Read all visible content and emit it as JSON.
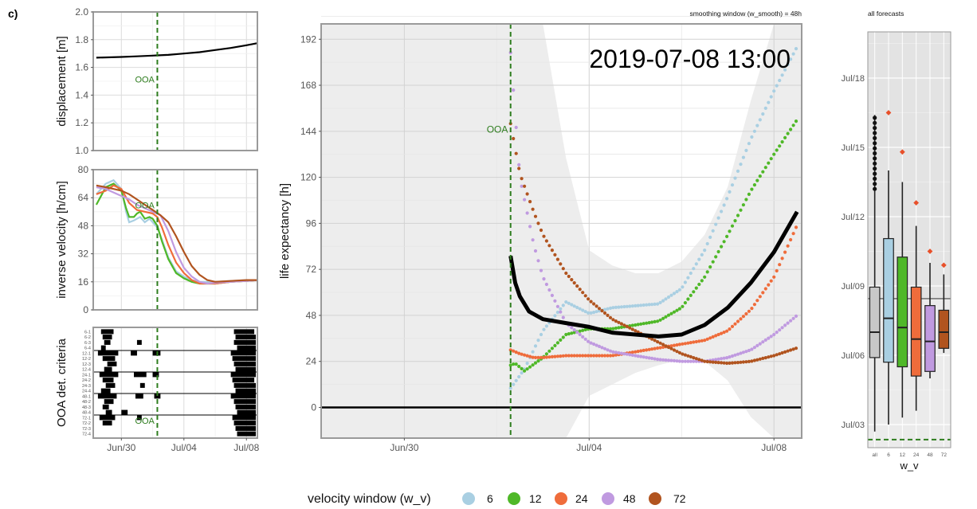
{
  "panel_label": "c)",
  "chart_data": [
    {
      "id": "displacement",
      "type": "line",
      "ylabel": "displacement [m]",
      "ylim": [
        1.0,
        2.0
      ],
      "yticks": [
        1.0,
        1.2,
        1.4,
        1.6,
        1.8,
        2.0
      ],
      "ytick_labels": [
        "1.0",
        "1.2",
        "1.4",
        "1.6",
        "1.8",
        "2.0"
      ],
      "xlim": [
        -1.8,
        8.7
      ],
      "ooa_label": "OOA",
      "ooa_x": 2.3,
      "series": [
        {
          "name": "displacement",
          "color": "#000000",
          "x": [
            -1.6,
            0,
            1,
            2,
            2.3,
            3,
            4,
            5,
            6,
            7,
            8,
            8.7
          ],
          "y": [
            1.67,
            1.675,
            1.68,
            1.685,
            1.687,
            1.69,
            1.7,
            1.71,
            1.725,
            1.74,
            1.76,
            1.775
          ]
        }
      ]
    },
    {
      "id": "inverse_velocity",
      "type": "line",
      "ylabel": "inverse velocity [h/cm]",
      "ylim": [
        0,
        80
      ],
      "yticks": [
        0,
        16,
        32,
        48,
        64,
        80
      ],
      "ytick_labels": [
        "0",
        "16",
        "32",
        "48",
        "64",
        "80"
      ],
      "xlim": [
        -1.8,
        8.7
      ],
      "ooa_label": "OOA",
      "ooa_x": 2.3,
      "series": [
        {
          "name": "6",
          "x": [
            -1.6,
            -1,
            -0.5,
            0,
            0.3,
            0.5,
            0.8,
            1,
            1.2,
            1.5,
            1.8,
            2,
            2.3,
            2.6,
            3,
            3.5,
            4,
            4.5,
            5,
            6,
            7,
            8,
            8.7
          ],
          "y": [
            66,
            72,
            74,
            69,
            56,
            50,
            51,
            52,
            53,
            50,
            52,
            50,
            47,
            40,
            30,
            22,
            19,
            17,
            16,
            16,
            16.5,
            17,
            17
          ]
        },
        {
          "name": "12",
          "x": [
            -1.6,
            -1,
            -0.5,
            0,
            0.3,
            0.5,
            0.8,
            1,
            1.2,
            1.5,
            1.8,
            2,
            2.3,
            2.6,
            3,
            3.5,
            4,
            4.5,
            5,
            6,
            7,
            8,
            8.7
          ],
          "y": [
            60,
            70,
            72,
            68,
            58,
            53,
            53,
            55,
            56,
            52,
            53,
            52,
            48,
            39,
            29,
            21,
            18,
            16,
            15,
            15,
            16,
            16.5,
            17
          ]
        },
        {
          "name": "24",
          "x": [
            -1.6,
            -1,
            -0.5,
            0,
            0.5,
            1,
            1.5,
            2,
            2.3,
            2.6,
            3,
            3.5,
            4,
            4.5,
            5,
            6,
            7,
            8,
            8.7
          ],
          "y": [
            66,
            68,
            71,
            69,
            61,
            57,
            56,
            55,
            53,
            47,
            37,
            27,
            21,
            17,
            15,
            15,
            16,
            16.5,
            17
          ]
        },
        {
          "name": "48",
          "x": [
            -1.6,
            -1,
            -0.5,
            0,
            0.5,
            1,
            1.5,
            2,
            2.5,
            3,
            3.5,
            4,
            4.5,
            5,
            5.5,
            6,
            7,
            8,
            8.7
          ],
          "y": [
            70,
            69,
            67,
            65,
            63,
            60,
            58,
            56,
            54,
            45,
            33,
            24,
            19,
            16,
            15,
            15.5,
            16,
            16.5,
            17
          ]
        },
        {
          "name": "72",
          "x": [
            -1.6,
            -1,
            -0.5,
            0,
            0.5,
            1,
            1.5,
            2,
            2.5,
            3,
            3.5,
            4,
            4.5,
            5,
            5.5,
            6,
            7,
            8,
            8.7
          ],
          "y": [
            71,
            70,
            69,
            68,
            66,
            63,
            60,
            57,
            54,
            50,
            42,
            33,
            25,
            20,
            17,
            16,
            16.5,
            17,
            17
          ]
        }
      ]
    },
    {
      "id": "ooa_criteria",
      "type": "raster",
      "ylabel": "OOA det. criteria",
      "row_labels": [
        "6-1",
        "6-2",
        "6-3",
        "6-4",
        "12-1",
        "12-2",
        "12-3",
        "12-4",
        "24-1",
        "24-2",
        "24-3",
        "24-4",
        "48-1",
        "48-2",
        "48-3",
        "48-4",
        "72-1",
        "72-2",
        "72-3",
        "72-4"
      ],
      "xlim": [
        -1.8,
        8.7
      ],
      "ooa_label": "OOA",
      "ooa_x": 2.3,
      "group_lines_after_rows": [
        3,
        7,
        11,
        15
      ],
      "events": [
        [
          [
            -1.3,
            -0.5
          ],
          [
            7.2,
            8.5
          ]
        ],
        [
          [
            -1.2,
            -0.6
          ],
          [
            7.3,
            8.6
          ]
        ],
        [
          [
            -1.1,
            -0.7
          ],
          [
            1.0,
            1.3
          ],
          [
            7.2,
            8.6
          ]
        ],
        [
          [
            -1.3,
            -1.0
          ],
          [
            7.4,
            8.6
          ]
        ],
        [
          [
            -1.5,
            -0.2
          ],
          [
            0.6,
            1.0
          ],
          [
            2.0,
            2.5
          ],
          [
            7.0,
            8.6
          ]
        ],
        [
          [
            -1.2,
            -0.4
          ],
          [
            7.1,
            8.6
          ]
        ],
        [
          [
            -0.9,
            -0.3
          ],
          [
            7.2,
            8.6
          ]
        ],
        [
          [
            -1.1,
            -0.6
          ],
          [
            7.3,
            8.6
          ]
        ],
        [
          [
            -1.4,
            -0.2
          ],
          [
            0.8,
            1.6
          ],
          [
            2.0,
            2.4
          ],
          [
            7.0,
            8.6
          ]
        ],
        [
          [
            -1.2,
            -0.5
          ],
          [
            7.1,
            8.5
          ]
        ],
        [
          [
            -1.0,
            -0.4
          ],
          [
            1.2,
            1.5
          ],
          [
            7.2,
            8.6
          ]
        ],
        [
          [
            -1.3,
            -0.7
          ],
          [
            7.3,
            8.6
          ]
        ],
        [
          [
            -1.5,
            -0.3
          ],
          [
            0.9,
            1.4
          ],
          [
            2.1,
            2.5
          ],
          [
            7.0,
            8.6
          ]
        ],
        [
          [
            -1.1,
            -0.5
          ],
          [
            7.2,
            8.6
          ]
        ],
        [
          [
            -1.2,
            -0.8
          ],
          [
            7.3,
            8.6
          ]
        ],
        [
          [
            -1.0,
            -0.6
          ],
          [
            0.0,
            0.4
          ],
          [
            7.4,
            8.6
          ]
        ],
        [
          [
            -1.4,
            -0.4
          ],
          [
            1.0,
            1.3
          ],
          [
            7.1,
            8.6
          ]
        ],
        [
          [
            -1.2,
            -0.6
          ],
          [
            7.2,
            8.6
          ]
        ],
        [
          [
            7.3,
            8.6
          ]
        ],
        [
          [
            7.4,
            8.6
          ]
        ]
      ]
    },
    {
      "id": "life_expectancy",
      "type": "line",
      "title": "smoothing window (w_smooth) = 48h",
      "annotation": "2019-07-08 13:00",
      "ylabel": "life expectancy [h]",
      "ylim": [
        -16,
        200
      ],
      "yticks": [
        0,
        24,
        48,
        72,
        96,
        120,
        144,
        168,
        192
      ],
      "ytick_labels": [
        "0",
        "24",
        "48",
        "72",
        "96",
        "120",
        "144",
        "168",
        "192"
      ],
      "xlim": [
        -1.8,
        8.6
      ],
      "xticks": [
        0,
        4,
        8
      ],
      "xtick_labels": [
        "Jun/30",
        "Jul/04",
        "Jul/08"
      ],
      "ooa_label": "OOA",
      "ooa_x": 2.3,
      "band": {
        "x": [
          2.3,
          3.0,
          3.5,
          4.0,
          4.5,
          5.0,
          5.5,
          6.0,
          6.5,
          7.0,
          7.5,
          8.0,
          8.6
        ],
        "upper": [
          200,
          200,
          130,
          82,
          74,
          70,
          70,
          76,
          90,
          115,
          160,
          200,
          200
        ],
        "lower": [
          -16,
          -16,
          -16,
          6,
          12,
          18,
          22,
          25,
          24,
          14,
          -5,
          -16,
          -16
        ]
      },
      "series": [
        {
          "name": "6",
          "style": "dots",
          "x": [
            2.3,
            2.6,
            3.0,
            3.5,
            4.0,
            4.5,
            5.0,
            5.5,
            6.0,
            6.5,
            7.0,
            7.5,
            8.0,
            8.5
          ],
          "y": [
            10,
            20,
            40,
            55,
            49,
            52,
            53,
            54,
            62,
            82,
            110,
            140,
            165,
            188
          ]
        },
        {
          "name": "12",
          "style": "dots",
          "x": [
            2.3,
            2.4,
            2.6,
            3.0,
            3.5,
            4.0,
            4.5,
            5.0,
            5.5,
            6.0,
            6.5,
            7.0,
            7.5,
            8.0,
            8.5
          ],
          "y": [
            22,
            23,
            19,
            26,
            38,
            41,
            41,
            43,
            45,
            52,
            68,
            90,
            113,
            132,
            150
          ]
        },
        {
          "name": "24",
          "style": "dots",
          "x": [
            2.3,
            2.5,
            2.8,
            3.0,
            3.5,
            4.0,
            4.5,
            5.0,
            5.5,
            6.0,
            6.5,
            7.0,
            7.5,
            8.0,
            8.5
          ],
          "y": [
            30,
            28,
            26,
            26,
            27,
            27,
            27,
            29,
            31,
            33,
            35,
            40,
            51,
            68,
            95
          ]
        },
        {
          "name": "48",
          "style": "dots",
          "x": [
            2.3,
            2.5,
            2.8,
            3.0,
            3.5,
            4.0,
            4.5,
            5.0,
            5.5,
            6.0,
            6.5,
            7.0,
            7.5,
            8.0,
            8.5
          ],
          "y": [
            185,
            120,
            85,
            68,
            44,
            34,
            29,
            27,
            25,
            24,
            24,
            26,
            30,
            38,
            48
          ]
        },
        {
          "name": "72",
          "style": "dots",
          "x": [
            2.3,
            2.5,
            2.8,
            3.0,
            3.5,
            4.0,
            4.5,
            5.0,
            5.5,
            6.0,
            6.5,
            7.0,
            7.5,
            8.0,
            8.5
          ],
          "y": [
            148,
            122,
            102,
            90,
            70,
            56,
            46,
            40,
            34,
            28,
            24,
            23,
            24,
            27,
            31
          ]
        },
        {
          "name": "combined",
          "style": "line",
          "x": [
            2.3,
            2.4,
            2.5,
            2.7,
            3.0,
            3.5,
            4.0,
            4.5,
            5.0,
            5.5,
            6.0,
            6.5,
            7.0,
            7.5,
            8.0,
            8.5
          ],
          "y": [
            79,
            65,
            58,
            50,
            46,
            44,
            42,
            39,
            38,
            37,
            38,
            43,
            52,
            65,
            81,
            102
          ]
        }
      ]
    },
    {
      "id": "all_forecasts",
      "type": "boxplot",
      "title": "all forecasts",
      "xlabel": "w_v",
      "categories": [
        "all",
        "6",
        "12",
        "24",
        "48",
        "72"
      ],
      "yticks": [
        3,
        6,
        9,
        12,
        15,
        18
      ],
      "ytick_labels": [
        "Jul/03",
        "Jul/06",
        "Jul/09",
        "Jul/12",
        "Jul/15",
        "Jul/18"
      ],
      "ylim": [
        2.0,
        20.0
      ],
      "reference_line": 8.45,
      "ooa_line": 2.35,
      "boxes": [
        {
          "name": "all",
          "min": 2.7,
          "q1": 5.9,
          "median": 7.0,
          "q3": 8.95,
          "max": 16.4,
          "outlier": null
        },
        {
          "name": "6",
          "min": 3.0,
          "q1": 5.7,
          "median": 7.6,
          "q3": 11.05,
          "max": 14.0,
          "outlier": 16.5
        },
        {
          "name": "12",
          "min": 3.3,
          "q1": 5.5,
          "median": 7.2,
          "q3": 10.25,
          "max": 13.5,
          "outlier": 14.8
        },
        {
          "name": "24",
          "min": 3.6,
          "q1": 5.1,
          "median": 6.7,
          "q3": 8.95,
          "max": 11.6,
          "outlier": 12.6
        },
        {
          "name": "48",
          "min": 5.0,
          "q1": 5.3,
          "median": 6.6,
          "q3": 8.15,
          "max": 10.0,
          "outlier": 10.5
        },
        {
          "name": "72",
          "min": 6.1,
          "q1": 6.3,
          "median": 7.0,
          "q3": 7.95,
          "max": 9.5,
          "outlier": 9.9
        }
      ]
    }
  ],
  "legend": {
    "title": "velocity window (w_v)",
    "items": [
      {
        "label": "6",
        "color": "#a9cfe2"
      },
      {
        "label": "12",
        "color": "#4fb828"
      },
      {
        "label": "24",
        "color": "#ef6c3b"
      },
      {
        "label": "48",
        "color": "#c09ae0"
      },
      {
        "label": "72",
        "color": "#b1541f"
      }
    ]
  },
  "colors": {
    "6": "#a9cfe2",
    "12": "#4fb828",
    "24": "#ef6c3b",
    "48": "#c09ae0",
    "72": "#b1541f",
    "all": "#c8c8c8",
    "ooa": "#2e7d1e",
    "combined": "#000000",
    "outlier": "#e8502a"
  }
}
